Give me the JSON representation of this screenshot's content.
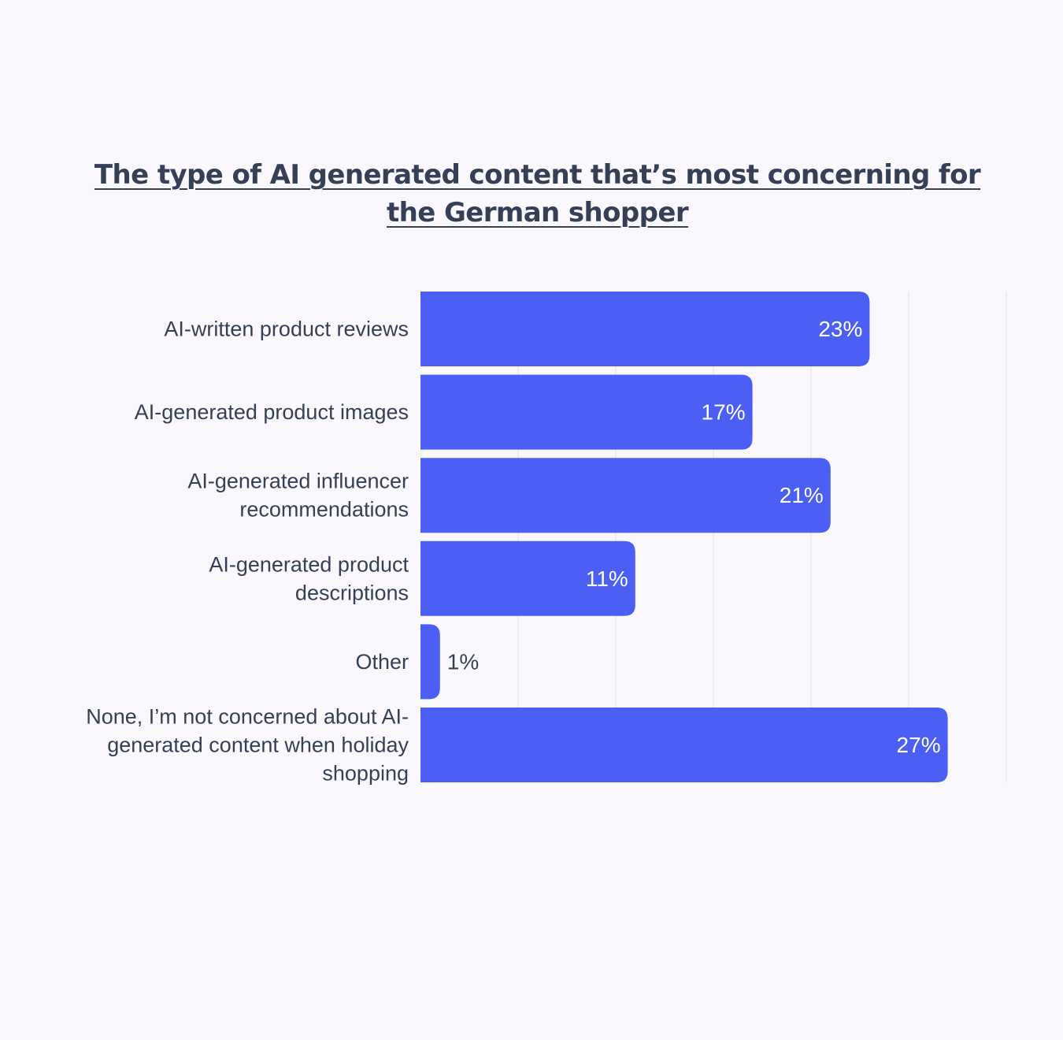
{
  "chart_data": {
    "type": "bar",
    "orientation": "horizontal",
    "title": "The type of AI generated content that’s most concerning for the German shopper",
    "categories": [
      "AI-written product reviews",
      "AI-generated product images",
      "AI-generated influencer recommendations",
      "AI-generated product descriptions",
      "Other",
      "None, I’m not concerned about AI-generated content when holiday shopping"
    ],
    "category_lines": [
      [
        "AI-written product reviews"
      ],
      [
        "AI-generated product images"
      ],
      [
        "AI-generated influencer",
        "recommendations"
      ],
      [
        "AI-generated product",
        "descriptions"
      ],
      [
        "Other"
      ],
      [
        "None, I’m not concerned about AI-",
        "generated content when holiday",
        "shopping"
      ]
    ],
    "values": [
      23,
      17,
      21,
      11,
      1,
      27
    ],
    "data_labels": [
      "23%",
      "17%",
      "21%",
      "11%",
      "1%",
      "27%"
    ],
    "xlim": [
      0,
      30
    ],
    "grid": true,
    "legend": "none",
    "bar_color": "#4b5ff5",
    "label_color": "#353f55",
    "inside_label_color": "#ffffff",
    "grid_color": "#e6e3ec"
  }
}
